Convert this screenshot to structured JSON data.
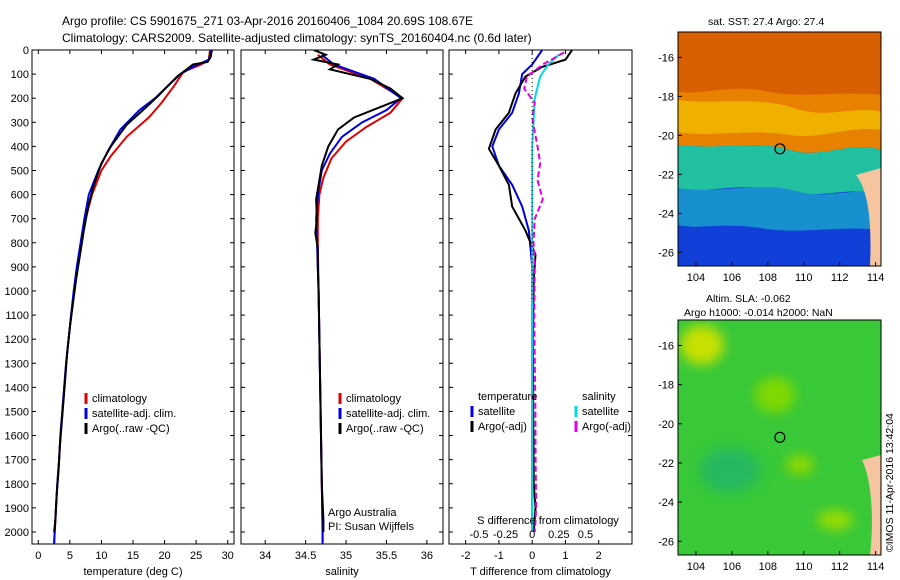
{
  "header": {
    "line1": "Argo profile: CS 5901675_271 03-Apr-2016 20160406_1084 20.69S 108.67E",
    "line2": "Climatology: CARS2009. Satellite-adjusted climatology: synTS_20160404.nc (0.6d later)"
  },
  "chart_data": [
    {
      "type": "line",
      "id": "temperature-profile",
      "xlabel": "temperature (deg C)",
      "xlim": [
        -1,
        31
      ],
      "xticks": [
        0,
        5,
        10,
        15,
        20,
        25,
        30
      ],
      "ylim": [
        0,
        2050
      ],
      "yticks": [
        0,
        100,
        200,
        300,
        400,
        500,
        600,
        700,
        800,
        900,
        1000,
        1100,
        1200,
        1300,
        1400,
        1500,
        1600,
        1700,
        1800,
        1900,
        2000
      ],
      "legend": [
        "climatology",
        "satellite-adj. clim.",
        "Argo(..raw -QC)"
      ],
      "series": [
        {
          "name": "climatology",
          "color": "#e00000",
          "points": [
            [
              27.2,
              0
            ],
            [
              27.0,
              40
            ],
            [
              25.8,
              60
            ],
            [
              23.0,
              90
            ],
            [
              21.5,
              150
            ],
            [
              19.5,
              220
            ],
            [
              17.5,
              280
            ],
            [
              14.0,
              360
            ],
            [
              11.5,
              440
            ],
            [
              10.0,
              500
            ],
            [
              8.5,
              600
            ],
            [
              7.5,
              700
            ],
            [
              6.8,
              800
            ],
            [
              6.2,
              900
            ],
            [
              5.7,
              1000
            ],
            [
              5.2,
              1100
            ],
            [
              4.8,
              1200
            ],
            [
              4.4,
              1300
            ],
            [
              4.1,
              1400
            ],
            [
              3.8,
              1500
            ],
            [
              3.5,
              1600
            ],
            [
              3.3,
              1700
            ],
            [
              3.0,
              1800
            ],
            [
              2.8,
              1900
            ],
            [
              2.6,
              2000
            ],
            [
              2.5,
              2050
            ]
          ]
        },
        {
          "name": "satellite-adj. clim.",
          "color": "#0000e0",
          "points": [
            [
              27.4,
              0
            ],
            [
              27.0,
              40
            ],
            [
              24.5,
              70
            ],
            [
              22.5,
              100
            ],
            [
              20.5,
              150
            ],
            [
              18.5,
              200
            ],
            [
              16.0,
              250
            ],
            [
              13.0,
              330
            ],
            [
              11.0,
              420
            ],
            [
              9.5,
              500
            ],
            [
              8.0,
              600
            ],
            [
              7.3,
              700
            ],
            [
              6.7,
              800
            ],
            [
              6.1,
              900
            ],
            [
              5.6,
              1000
            ],
            [
              5.2,
              1100
            ],
            [
              4.8,
              1200
            ],
            [
              4.4,
              1300
            ],
            [
              4.1,
              1400
            ],
            [
              3.8,
              1500
            ],
            [
              3.5,
              1600
            ],
            [
              3.3,
              1700
            ],
            [
              3.0,
              1800
            ],
            [
              2.8,
              1900
            ],
            [
              2.6,
              2000
            ],
            [
              2.5,
              2050
            ]
          ]
        },
        {
          "name": "Argo(..raw -QC)",
          "color": "#000000",
          "points": [
            [
              27.5,
              0
            ],
            [
              27.3,
              30
            ],
            [
              26.8,
              50
            ],
            [
              24.5,
              60
            ],
            [
              23.5,
              80
            ],
            [
              22.0,
              110
            ],
            [
              20.5,
              150
            ],
            [
              19.0,
              190
            ],
            [
              17.0,
              240
            ],
            [
              14.0,
              310
            ],
            [
              11.5,
              400
            ],
            [
              10.0,
              470
            ],
            [
              8.8,
              560
            ],
            [
              7.9,
              650
            ],
            [
              7.2,
              750
            ],
            [
              6.6,
              850
            ],
            [
              6.0,
              950
            ],
            [
              5.5,
              1050
            ],
            [
              5.0,
              1150
            ],
            [
              4.6,
              1250
            ],
            [
              4.3,
              1350
            ],
            [
              4.0,
              1450
            ],
            [
              3.7,
              1550
            ],
            [
              3.4,
              1650
            ],
            [
              3.2,
              1750
            ],
            [
              2.9,
              1850
            ],
            [
              2.7,
              1950
            ],
            [
              2.5,
              2000
            ]
          ]
        }
      ]
    },
    {
      "type": "line",
      "id": "salinity-profile",
      "xlabel": "salinity",
      "xlim": [
        33.7,
        36.2
      ],
      "xticks": [
        34,
        34.5,
        35,
        35.5,
        36
      ],
      "ylim": [
        0,
        2050
      ],
      "legend": [
        "climatology",
        "satellite-adj. clim.",
        "Argo(..raw -QC)"
      ],
      "note": [
        "Argo Australia",
        "PI: Susan Wijffels"
      ],
      "series": [
        {
          "name": "climatology",
          "color": "#e00000",
          "points": [
            [
              34.65,
              20
            ],
            [
              34.8,
              60
            ],
            [
              35.3,
              120
            ],
            [
              35.7,
              200
            ],
            [
              35.55,
              260
            ],
            [
              35.25,
              320
            ],
            [
              35.0,
              380
            ],
            [
              34.82,
              450
            ],
            [
              34.72,
              530
            ],
            [
              34.67,
              600
            ],
            [
              34.65,
              700
            ],
            [
              34.65,
              800
            ],
            [
              34.66,
              1000
            ],
            [
              34.67,
              1200
            ],
            [
              34.68,
              1400
            ],
            [
              34.69,
              1600
            ],
            [
              34.7,
              1800
            ],
            [
              34.71,
              2000
            ],
            [
              34.71,
              2050
            ]
          ]
        },
        {
          "name": "satellite-adj. clim.",
          "color": "#0000e0",
          "points": [
            [
              34.7,
              20
            ],
            [
              34.85,
              60
            ],
            [
              35.35,
              120
            ],
            [
              35.68,
              200
            ],
            [
              35.5,
              250
            ],
            [
              35.2,
              300
            ],
            [
              34.95,
              360
            ],
            [
              34.8,
              430
            ],
            [
              34.7,
              500
            ],
            [
              34.66,
              580
            ],
            [
              34.64,
              650
            ],
            [
              34.63,
              700
            ],
            [
              34.64,
              800
            ],
            [
              34.66,
              1000
            ],
            [
              34.67,
              1200
            ],
            [
              34.68,
              1400
            ],
            [
              34.69,
              1600
            ],
            [
              34.7,
              1800
            ],
            [
              34.71,
              2000
            ],
            [
              34.71,
              2050
            ]
          ]
        },
        {
          "name": "Argo(..raw -QC)",
          "color": "#000000",
          "points": [
            [
              34.6,
              0
            ],
            [
              34.75,
              20
            ],
            [
              34.6,
              40
            ],
            [
              34.9,
              60
            ],
            [
              34.8,
              80
            ],
            [
              35.3,
              120
            ],
            [
              35.55,
              160
            ],
            [
              35.7,
              200
            ],
            [
              35.4,
              240
            ],
            [
              35.1,
              280
            ],
            [
              34.9,
              330
            ],
            [
              34.78,
              400
            ],
            [
              34.7,
              480
            ],
            [
              34.66,
              560
            ],
            [
              34.63,
              620
            ],
            [
              34.64,
              700
            ],
            [
              34.62,
              760
            ],
            [
              34.65,
              820
            ],
            [
              34.65,
              900
            ],
            [
              34.66,
              1000
            ],
            [
              34.67,
              1200
            ],
            [
              34.68,
              1400
            ],
            [
              34.69,
              1600
            ],
            [
              34.7,
              1800
            ],
            [
              34.72,
              1950
            ],
            [
              34.72,
              2000
            ]
          ]
        }
      ]
    },
    {
      "type": "line",
      "id": "difference-profile",
      "xlabel_top": "S difference from climatology",
      "xlabel": "T difference from climatology",
      "xlim": [
        -2.5,
        3
      ],
      "xticks": [
        -2,
        -1,
        0,
        1,
        2
      ],
      "sticks": [
        -0.5,
        -0.25,
        0,
        0.25,
        0.5
      ],
      "sticklabels": [
        "-0.5",
        "-0.25",
        "0",
        "0.25",
        "0.5"
      ],
      "ylim": [
        0,
        2050
      ],
      "legend_temperature": [
        "temperature",
        "satellite",
        "Argo(-adj)"
      ],
      "legend_salinity": [
        "salinity",
        "satellite",
        "Argo(-adj)"
      ],
      "series": [
        {
          "name": "satellite",
          "group": "temperature",
          "color": "#0000e0",
          "dashed": false,
          "points": [
            [
              0.3,
              0
            ],
            [
              0.0,
              60
            ],
            [
              -0.3,
              100
            ],
            [
              -0.4,
              180
            ],
            [
              -0.6,
              260
            ],
            [
              -1.0,
              330
            ],
            [
              -1.2,
              400
            ],
            [
              -1.0,
              480
            ],
            [
              -0.6,
              560
            ],
            [
              -0.3,
              650
            ],
            [
              -0.1,
              750
            ],
            [
              0,
              900
            ],
            [
              0,
              2000
            ]
          ]
        },
        {
          "name": "Argo(-adj)",
          "group": "temperature",
          "color": "#000000",
          "dashed": false,
          "points": [
            [
              1.2,
              0
            ],
            [
              1.0,
              40
            ],
            [
              0.3,
              70
            ],
            [
              -0.2,
              110
            ],
            [
              -0.5,
              180
            ],
            [
              -0.7,
              260
            ],
            [
              -1.1,
              330
            ],
            [
              -1.3,
              410
            ],
            [
              -1.0,
              480
            ],
            [
              -0.7,
              560
            ],
            [
              -0.6,
              650
            ],
            [
              -0.2,
              750
            ],
            [
              0.1,
              850
            ],
            [
              0.05,
              950
            ],
            [
              0.02,
              1200
            ],
            [
              0.03,
              1500
            ],
            [
              0.05,
              1800
            ],
            [
              0.1,
              1900
            ],
            [
              0.05,
              2000
            ]
          ]
        },
        {
          "name": "satellite",
          "group": "salinity",
          "color": "#00d8e8",
          "dashed": false,
          "points": [
            [
              1.0,
              20
            ],
            [
              0.6,
              60
            ],
            [
              0.3,
              110
            ],
            [
              0.1,
              200
            ],
            [
              0.05,
              300
            ],
            [
              0,
              400
            ],
            [
              0,
              500
            ],
            [
              0,
              700
            ],
            [
              0,
              1000
            ],
            [
              0,
              2000
            ]
          ]
        },
        {
          "name": "Argo(-adj)",
          "group": "salinity",
          "color": "#e000e0",
          "dashed": true,
          "points": [
            [
              1.2,
              10
            ],
            [
              0.4,
              60
            ],
            [
              -0.2,
              110
            ],
            [
              -0.3,
              160
            ],
            [
              0.1,
              220
            ],
            [
              0.0,
              280
            ],
            [
              0.1,
              340
            ],
            [
              0.2,
              400
            ],
            [
              0.3,
              470
            ],
            [
              0.2,
              540
            ],
            [
              0.4,
              620
            ],
            [
              0.1,
              700
            ],
            [
              0.05,
              800
            ],
            [
              0.1,
              900
            ],
            [
              0.08,
              1100
            ],
            [
              0.1,
              1300
            ],
            [
              0.12,
              1500
            ],
            [
              0.13,
              1700
            ],
            [
              0.15,
              1900
            ],
            [
              0.1,
              2000
            ]
          ]
        }
      ]
    },
    {
      "type": "heatmap",
      "id": "sst-map",
      "title": "sat. SST: 27.4 Argo: 27.4",
      "xlim": [
        103,
        114.3
      ],
      "ylim": [
        -26.7,
        -14.7
      ],
      "xticks": [
        104,
        106,
        108,
        110,
        112,
        114
      ],
      "yticks": [
        -16,
        -18,
        -20,
        -22,
        -24,
        -26
      ],
      "argo_position": [
        108.67,
        -20.69
      ]
    },
    {
      "type": "heatmap",
      "id": "sla-map",
      "title_line1": "Altim. SLA: -0.062",
      "title_line2": "Argo h1000: -0.014 h2000: NaN",
      "xlim": [
        103,
        114.3
      ],
      "ylim": [
        -26.7,
        -14.7
      ],
      "xticks": [
        104,
        106,
        108,
        110,
        112,
        114
      ],
      "yticks": [
        -16,
        -18,
        -20,
        -22,
        -24,
        -26
      ],
      "argo_position": [
        108.67,
        -20.69
      ]
    }
  ],
  "footer": {
    "credit": "©IMOS 11-Apr-2016 13:42:04"
  }
}
